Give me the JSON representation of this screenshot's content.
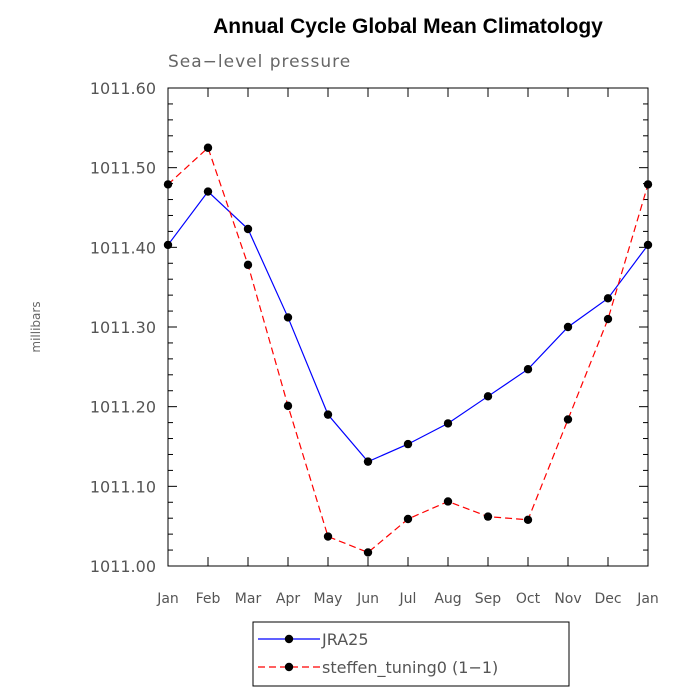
{
  "chart_data": {
    "type": "line",
    "title": "Annual Cycle Global Mean Climatology",
    "subtitle": "Sea−level pressure",
    "ylabel": "millibars",
    "xlabel": "",
    "categories": [
      "Jan",
      "Feb",
      "Mar",
      "Apr",
      "May",
      "Jun",
      "Jul",
      "Aug",
      "Sep",
      "Oct",
      "Nov",
      "Dec",
      "Jan"
    ],
    "ylim": [
      1011.0,
      1011.6
    ],
    "yticks": [
      "1011.00",
      "1011.10",
      "1011.20",
      "1011.30",
      "1011.40",
      "1011.50",
      "1011.60"
    ],
    "grid": false,
    "legend_position": "bottom-center",
    "series": [
      {
        "name": "JRA25",
        "color": "#0000ff",
        "dash": "solid",
        "values": [
          1011.403,
          1011.47,
          1011.423,
          1011.312,
          1011.19,
          1011.131,
          1011.153,
          1011.179,
          1011.213,
          1011.247,
          1011.3,
          1011.336,
          1011.403
        ]
      },
      {
        "name": "steffen_tuning0 (1−1)",
        "color": "#ff0000",
        "dash": "dashed",
        "values": [
          1011.479,
          1011.525,
          1011.378,
          1011.201,
          1011.037,
          1011.017,
          1011.059,
          1011.081,
          1011.062,
          1011.058,
          1011.184,
          1011.31,
          1011.479
        ]
      }
    ]
  }
}
